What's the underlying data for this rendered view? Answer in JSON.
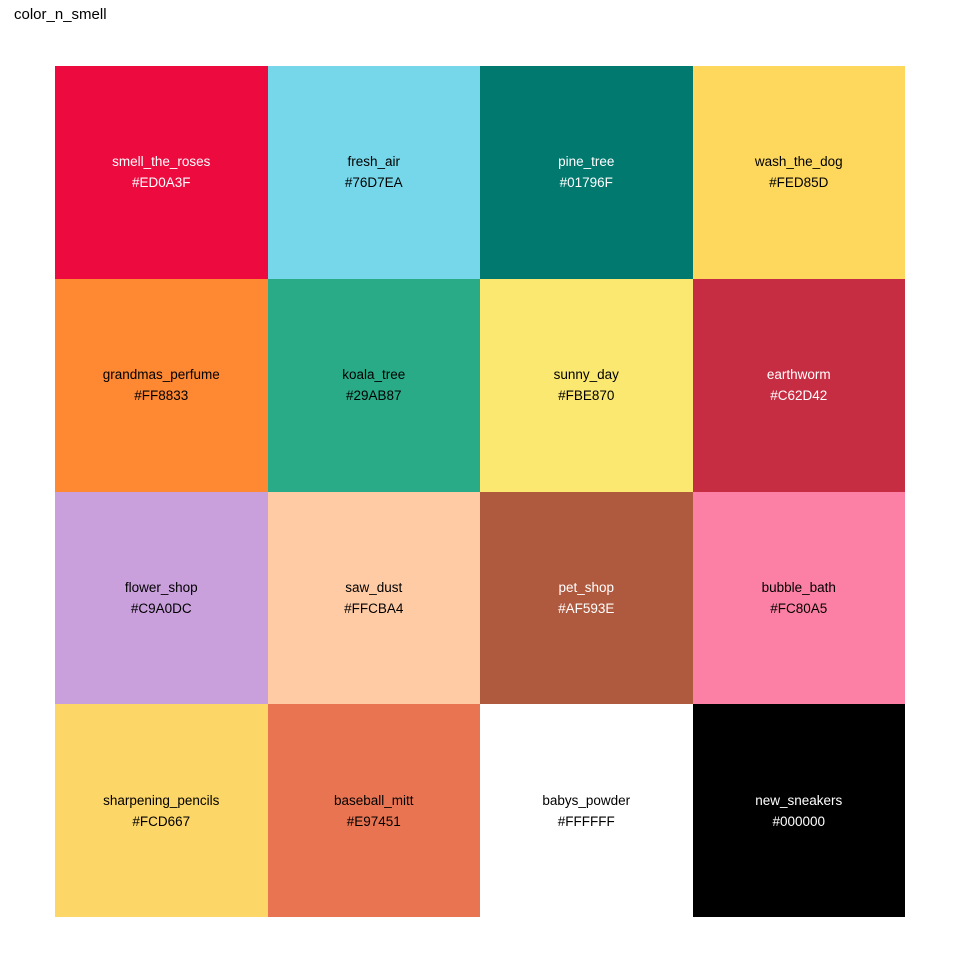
{
  "title": "color_n_smell",
  "grid": {
    "rows": 4,
    "cols": 4,
    "tiles": [
      {
        "name": "smell_the_roses",
        "hex": "#ED0A3F",
        "text_color": "#FFFFFF"
      },
      {
        "name": "fresh_air",
        "hex": "#76D7EA",
        "text_color": "#000000"
      },
      {
        "name": "pine_tree",
        "hex": "#01796F",
        "text_color": "#FFFFFF"
      },
      {
        "name": "wash_the_dog",
        "hex": "#FED85D",
        "text_color": "#000000"
      },
      {
        "name": "grandmas_perfume",
        "hex": "#FF8833",
        "text_color": "#000000"
      },
      {
        "name": "koala_tree",
        "hex": "#29AB87",
        "text_color": "#000000"
      },
      {
        "name": "sunny_day",
        "hex": "#FBE870",
        "text_color": "#000000"
      },
      {
        "name": "earthworm",
        "hex": "#C62D42",
        "text_color": "#FFFFFF"
      },
      {
        "name": "flower_shop",
        "hex": "#C9A0DC",
        "text_color": "#000000"
      },
      {
        "name": "saw_dust",
        "hex": "#FFCBA4",
        "text_color": "#000000"
      },
      {
        "name": "pet_shop",
        "hex": "#AF593E",
        "text_color": "#FFFFFF"
      },
      {
        "name": "bubble_bath",
        "hex": "#FC80A5",
        "text_color": "#000000"
      },
      {
        "name": "sharpening_pencils",
        "hex": "#FCD667",
        "text_color": "#000000"
      },
      {
        "name": "baseball_mitt",
        "hex": "#E97451",
        "text_color": "#000000"
      },
      {
        "name": "babys_powder",
        "hex": "#FFFFFF",
        "text_color": "#000000"
      },
      {
        "name": "new_sneakers",
        "hex": "#000000",
        "text_color": "#FFFFFF"
      }
    ]
  },
  "chart_data": {
    "type": "table",
    "title": "color_n_smell",
    "rows": 4,
    "cols": 4,
    "categories_grid": [
      [
        "smell_the_roses",
        "fresh_air",
        "pine_tree",
        "wash_the_dog"
      ],
      [
        "grandmas_perfume",
        "koala_tree",
        "sunny_day",
        "earthworm"
      ],
      [
        "flower_shop",
        "saw_dust",
        "pet_shop",
        "bubble_bath"
      ],
      [
        "sharpening_pencils",
        "baseball_mitt",
        "babys_powder",
        "new_sneakers"
      ]
    ],
    "values_grid": [
      [
        "#ED0A3F",
        "#76D7EA",
        "#01796F",
        "#FED85D"
      ],
      [
        "#FF8833",
        "#29AB87",
        "#FBE870",
        "#C62D42"
      ],
      [
        "#C9A0DC",
        "#FFCBA4",
        "#AF593E",
        "#FC80A5"
      ],
      [
        "#FCD667",
        "#E97451",
        "#FFFFFF",
        "#000000"
      ]
    ],
    "legend": "none",
    "grid_lines": false
  }
}
